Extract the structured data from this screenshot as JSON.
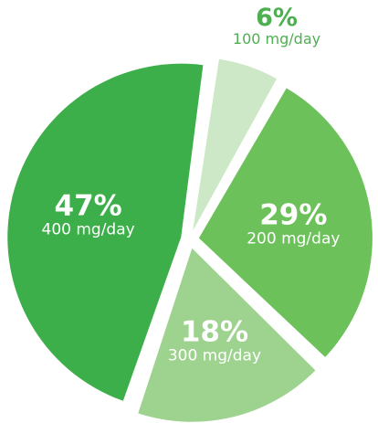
{
  "chart_data": {
    "type": "pie",
    "title": "",
    "start_angle_deg": 8,
    "direction": "clockwise",
    "exploded": true,
    "slices": [
      {
        "percent": "6%",
        "label": "100 mg/day",
        "value": 6,
        "color": "#cde8c6",
        "label_color": "#4caf50",
        "label_outside": true
      },
      {
        "percent": "29%",
        "label": "200 mg/day",
        "value": 29,
        "color": "#6cc15a",
        "label_color": "#ffffff",
        "label_outside": false
      },
      {
        "percent": "18%",
        "label": "300 mg/day",
        "value": 18,
        "color": "#9ed38f",
        "label_color": "#ffffff",
        "label_outside": false
      },
      {
        "percent": "47%",
        "label": "400 mg/day",
        "value": 47,
        "color": "#3daf4a",
        "label_color": "#ffffff",
        "label_outside": false
      }
    ]
  }
}
